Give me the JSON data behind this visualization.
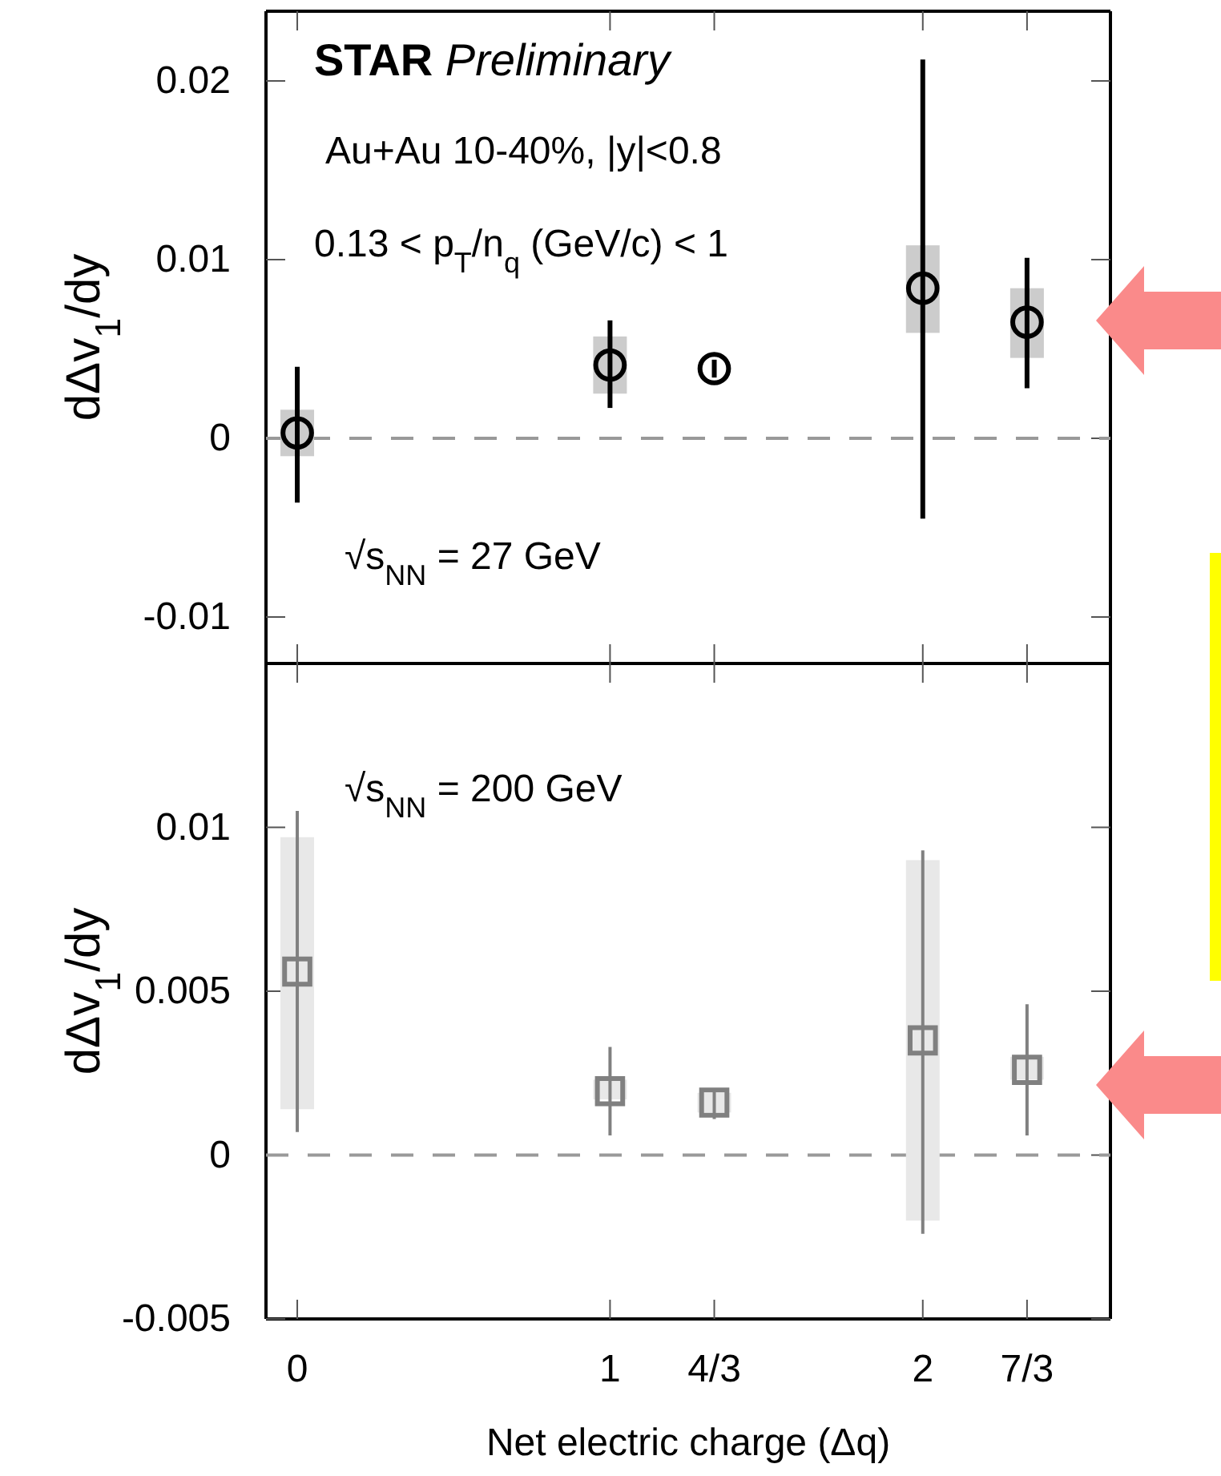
{
  "chart_data": [
    {
      "type": "scatter",
      "ylabel": "dΔv$_{1}$/dy",
      "marker": "circle",
      "tick_labels": "y",
      "xlim": [
        -0.1,
        2.6
      ],
      "ylim": [
        -0.0126,
        0.0239
      ],
      "yticks": [
        {
          "value": -0.01,
          "label": "-0.01"
        },
        0,
        0.01,
        0.02
      ],
      "annotations": [
        "STAR Preliminary",
        "Au+Au 10-40%, |y|<0.8",
        "0.13 < p$_{T}$/n$_{q}$ (GeV/c) < 1",
        "√s$_{NN}$ = 27 GeV"
      ],
      "ref_lines": [
        {
          "axis": "y",
          "value": 0,
          "color": "#999999",
          "line_style": "dashed"
        }
      ],
      "series": [
        {
          "type": "bar",
          "color": "#cccccc",
          "x": [
            0,
            1,
            2,
            2.3333
          ],
          "base": [
            -0.001,
            0.0025,
            0.0059,
            0.0045
          ],
          "values": [
            0.0026,
            0.0032,
            0.0049,
            0.0039
          ]
        },
        {
          "color": "#000000",
          "x": [
            0,
            1,
            1.3333,
            2,
            2.3333
          ],
          "values": [
            0.0003,
            0.0041,
            0.0039,
            0.0084,
            0.0065
          ],
          "errors": [
            [
              -0.0036,
              0.004
            ],
            [
              0.0017,
              0.0066
            ],
            [
              0.0034,
              0.0044
            ],
            [
              -0.0045,
              0.0212
            ],
            [
              0.0028,
              0.0101
            ]
          ]
        }
      ]
    },
    {
      "type": "scatter",
      "ylabel": "dΔv$_{1}$/dy",
      "xlabel": "Net electric charge (Δq)",
      "marker": "square",
      "xlim": [
        -0.1,
        2.6
      ],
      "xticks": [
        0,
        1,
        {
          "value": 1.3333,
          "label": "4/3"
        },
        2,
        {
          "value": 2.3333,
          "label": "7/3"
        }
      ],
      "ylim": [
        -0.005,
        0.015
      ],
      "yticks": [
        {
          "value": -0.005,
          "label": "-0.005"
        },
        0,
        0.005,
        0.01
      ],
      "annotations": [
        "√s$_{NN}$ = 200 GeV"
      ],
      "ref_lines": [
        {
          "axis": "y",
          "value": 0,
          "color": "#999999",
          "line_style": "dashed"
        }
      ],
      "series": [
        {
          "type": "bar",
          "color": "#e8e8e8",
          "x": [
            0,
            1,
            1.3333,
            2,
            2.3333
          ],
          "base": [
            0.0014,
            0.0017,
            0.0013,
            -0.002,
            0.0023
          ],
          "values": [
            0.0083,
            0.0006,
            0.0006,
            0.011,
            0.0007
          ]
        },
        {
          "color": "#808080",
          "x": [
            0,
            1,
            1.3333,
            2,
            2.3333
          ],
          "values": [
            0.0056,
            0.00195,
            0.0016,
            0.0035,
            0.0026
          ],
          "errors": [
            [
              0.0007,
              0.0105
            ],
            [
              0.0006,
              0.0033
            ],
            [
              0.0011,
              0.002
            ],
            [
              -0.0024,
              0.0093
            ],
            [
              0.0006,
              0.0046
            ]
          ]
        }
      ]
    }
  ]
}
